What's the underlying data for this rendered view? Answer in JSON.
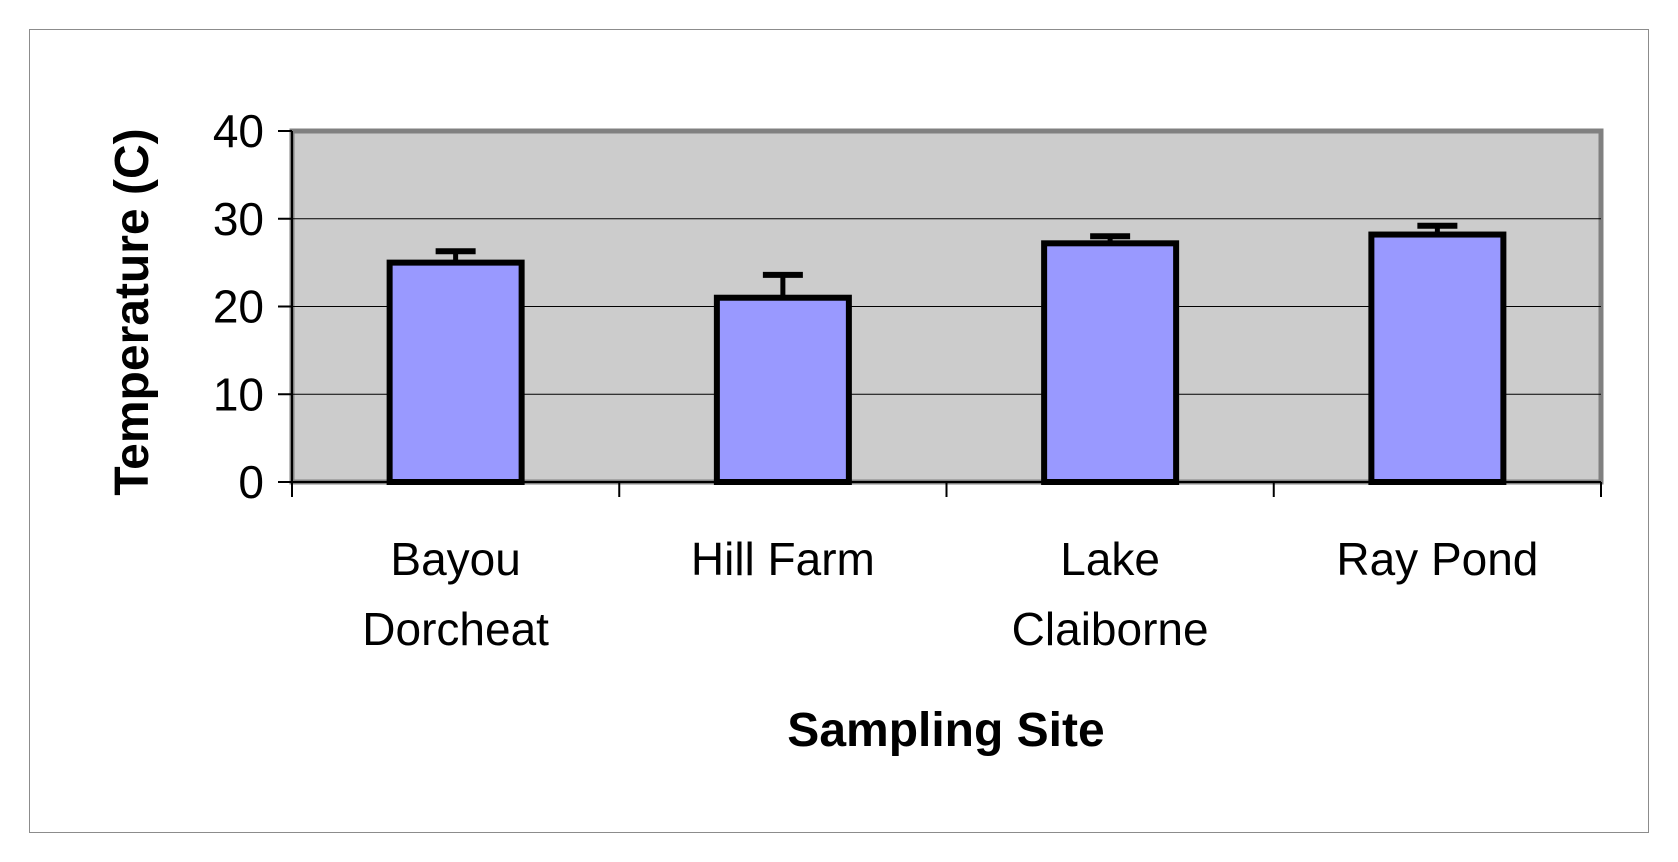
{
  "chart_data": {
    "type": "bar",
    "title": "",
    "xlabel": "Sampling Site",
    "ylabel": "Temperature (C)",
    "categories": [
      [
        "Bayou",
        "Dorcheat"
      ],
      [
        "Hill Farm"
      ],
      [
        "Lake",
        "Claiborne"
      ],
      [
        "Ray Pond"
      ]
    ],
    "series": [
      {
        "values": [
          25.0,
          21.0,
          27.2,
          28.2
        ],
        "error": [
          1.3,
          2.6,
          0.8,
          1.0
        ]
      }
    ],
    "ylim": [
      0,
      40
    ],
    "yticks": [
      "0",
      "10",
      "20",
      "30",
      "40"
    ],
    "grid": true,
    "legend": "none",
    "colors": {
      "bar_fill": "#9999ff",
      "bar_stroke": "#000000",
      "plot_bg": "#cccccc",
      "plot_border": "#808080",
      "gridline": "#000000"
    }
  }
}
